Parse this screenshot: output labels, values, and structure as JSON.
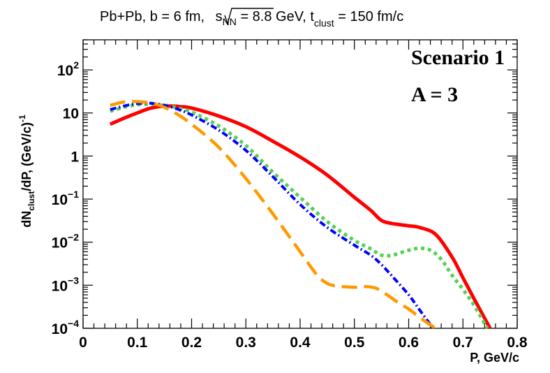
{
  "chart_data": {
    "type": "line",
    "title_parts": {
      "prefix": "Pb+Pb, b = 6 fm, ",
      "sqrt_s": "s",
      "sqrt_s_sub": "NN",
      "energy": " = 8.8 GeV, t",
      "t_sub": "clust",
      "t_value": " = 150 fm/c"
    },
    "xlabel": "P, GeV/c",
    "ylabel_parts": {
      "a": "dN",
      "sub": "clust",
      "b": "/dP, (GeV/c)",
      "sup": "-1"
    },
    "x_ticks": [
      "0",
      "0.1",
      "0.2",
      "0.3",
      "0.4",
      "0.5",
      "0.6",
      "0.7",
      "0.8"
    ],
    "xlim": [
      0,
      0.8
    ],
    "ylim": [
      0.0001,
      500
    ],
    "y_scale": "log",
    "y_ticks": [
      {
        "value": 100,
        "base": "10",
        "exp": "2"
      },
      {
        "value": 10,
        "base": "10",
        "exp": ""
      },
      {
        "value": 1,
        "base": "1",
        "exp": ""
      },
      {
        "value": 0.1,
        "base": "10",
        "exp": "−1"
      },
      {
        "value": 0.01,
        "base": "10",
        "exp": "−2"
      },
      {
        "value": 0.001,
        "base": "10",
        "exp": "−3"
      },
      {
        "value": 0.0001,
        "base": "10",
        "exp": "−4"
      }
    ],
    "annotations": [
      "Scenario 1",
      "A = 3"
    ],
    "series": [
      {
        "name": "red-solid",
        "color": "#ff0000",
        "style": "solid",
        "x": [
          0.05,
          0.08,
          0.1,
          0.12,
          0.14,
          0.16,
          0.18,
          0.2,
          0.25,
          0.3,
          0.35,
          0.4,
          0.45,
          0.5,
          0.53,
          0.55,
          0.57,
          0.6,
          0.62,
          0.65,
          0.68,
          0.7,
          0.72,
          0.75
        ],
        "y": [
          5.5,
          8.0,
          10.0,
          12.5,
          14.0,
          14.5,
          14.0,
          13.0,
          8.5,
          4.8,
          2.2,
          0.95,
          0.36,
          0.11,
          0.055,
          0.032,
          0.027,
          0.024,
          0.022,
          0.015,
          0.0045,
          0.0015,
          0.0005,
          0.0001
        ]
      },
      {
        "name": "green-dotted",
        "color": "#55d055",
        "style": "dotted",
        "x": [
          0.05,
          0.08,
          0.1,
          0.12,
          0.14,
          0.16,
          0.18,
          0.2,
          0.25,
          0.3,
          0.35,
          0.4,
          0.45,
          0.5,
          0.53,
          0.55,
          0.57,
          0.6,
          0.62,
          0.64,
          0.66,
          0.68,
          0.7,
          0.72,
          0.745
        ],
        "y": [
          11.0,
          14.0,
          15.5,
          16.0,
          15.5,
          14.5,
          12.5,
          10.5,
          5.0,
          1.75,
          0.42,
          0.11,
          0.03,
          0.011,
          0.007,
          0.005,
          0.005,
          0.0065,
          0.0072,
          0.0065,
          0.004,
          0.0017,
          0.0008,
          0.00035,
          0.0001
        ]
      },
      {
        "name": "blue-dashdot",
        "color": "#0000ff",
        "style": "dashdot",
        "x": [
          0.05,
          0.08,
          0.1,
          0.12,
          0.14,
          0.16,
          0.18,
          0.2,
          0.25,
          0.3,
          0.35,
          0.4,
          0.45,
          0.5,
          0.53,
          0.55,
          0.57,
          0.6,
          0.62,
          0.645
        ],
        "y": [
          12.0,
          15.0,
          16.5,
          17.0,
          16.0,
          14.0,
          11.5,
          9.0,
          4.0,
          1.35,
          0.33,
          0.075,
          0.022,
          0.0085,
          0.005,
          0.003,
          0.0016,
          0.0006,
          0.00027,
          0.0001
        ]
      },
      {
        "name": "orange-dashed",
        "color": "#ff9900",
        "style": "dashed",
        "x": [
          0.05,
          0.07,
          0.09,
          0.11,
          0.13,
          0.15,
          0.17,
          0.2,
          0.25,
          0.3,
          0.35,
          0.4,
          0.43,
          0.45,
          0.47,
          0.5,
          0.52,
          0.54,
          0.56,
          0.58,
          0.6,
          0.62,
          0.64,
          0.65
        ],
        "y": [
          15.0,
          17.5,
          18.5,
          18.0,
          16.5,
          13.5,
          10.0,
          5.5,
          1.6,
          0.3,
          0.045,
          0.006,
          0.0018,
          0.0011,
          0.00095,
          0.0009,
          0.00093,
          0.00085,
          0.0006,
          0.0004,
          0.00028,
          0.00018,
          0.00012,
          0.0001
        ]
      }
    ]
  }
}
